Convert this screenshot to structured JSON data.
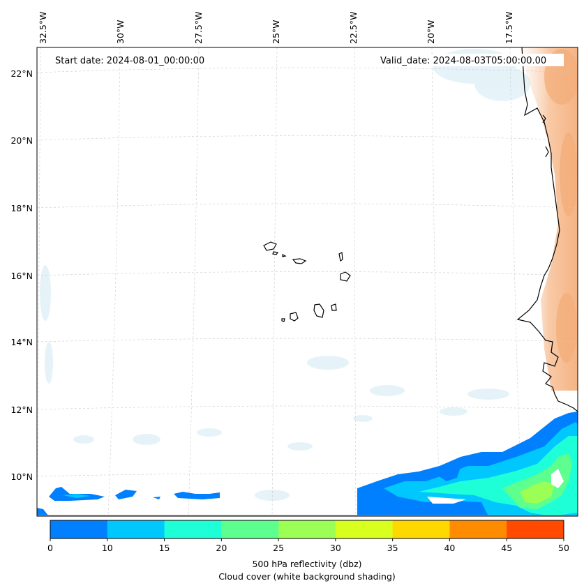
{
  "map": {
    "start_date": "Start date: 2024-08-01_00:00:00",
    "valid_date": "Valid_date: 2024-08-03T05:00:00.00",
    "lon_labels": [
      "32.5°W",
      "30°W",
      "27.5°W",
      "25°W",
      "22.5°W",
      "20°W",
      "17.5°W"
    ],
    "lat_labels": [
      "22°N",
      "20°N",
      "18°N",
      "16°N",
      "14°N",
      "12°N",
      "10°N"
    ]
  },
  "colorbar": {
    "ticks": [
      "0",
      "10",
      "15",
      "20",
      "25",
      "30",
      "35",
      "40",
      "45",
      "50"
    ],
    "colors": [
      "#0080ff",
      "#00c8ff",
      "#1effd8",
      "#5dff8f",
      "#9bff55",
      "#d8ff1e",
      "#ffd800",
      "#ff8c00",
      "#ff4a00"
    ],
    "label_line1": "500 hPa reflectivity (dbz)",
    "label_line2": "Cloud cover (white background shading)"
  },
  "style": {
    "coast_color": "#000000",
    "cloud_color": "#dff0f7",
    "land_warm_color": "#f6b98a"
  }
}
